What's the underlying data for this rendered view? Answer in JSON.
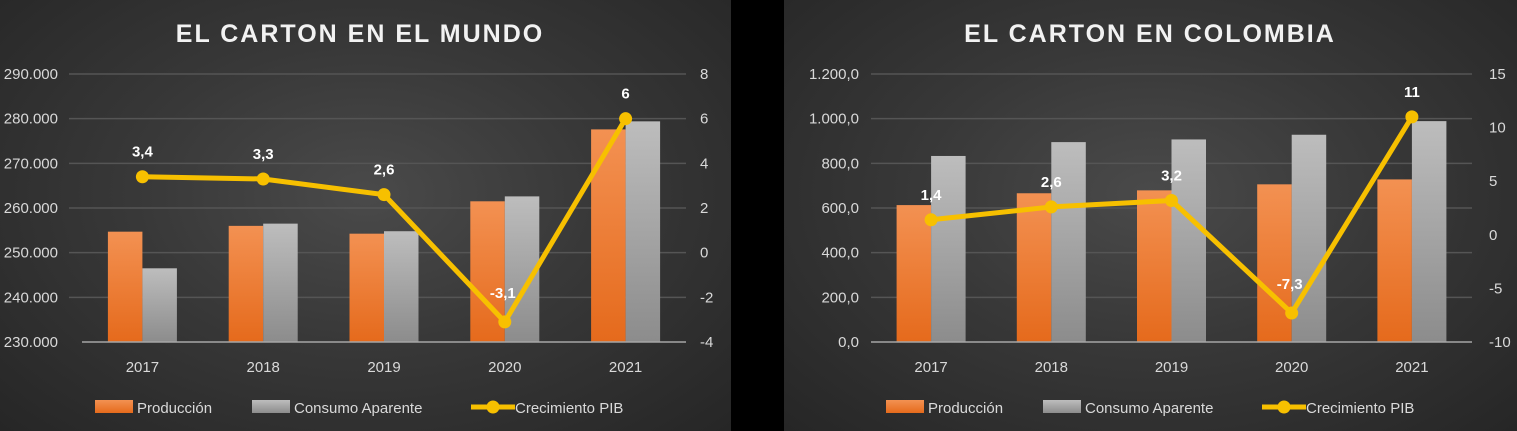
{
  "colors": {
    "produccion_top": "#f39152",
    "produccion_bottom": "#e56a1c",
    "consumo_top": "#bdbdbd",
    "consumo_bottom": "#8c8c8c",
    "pib": "#f7c000",
    "grid": "#555555",
    "axis": "#a6a6a6"
  },
  "chart_data": [
    {
      "type": "bar",
      "title": "EL CARTON EN EL MUNDO",
      "categories": [
        "2017",
        "2018",
        "2019",
        "2020",
        "2021"
      ],
      "series": [
        {
          "name": "Producción",
          "type": "bar",
          "axis": "left",
          "values": [
            254700,
            256000,
            254250,
            261500,
            277600
          ]
        },
        {
          "name": "Consumo Aparente",
          "type": "bar",
          "axis": "left",
          "values": [
            246500,
            256500,
            254800,
            262600,
            279400
          ]
        },
        {
          "name": "Crecimiento PIB",
          "type": "line",
          "axis": "right",
          "values": [
            3.4,
            3.3,
            2.6,
            -3.1,
            6
          ],
          "labels": [
            "3,4",
            "3,3",
            "2,6",
            "-3,1",
            "6"
          ]
        }
      ],
      "ylim": [
        230000,
        290000
      ],
      "yticks": [
        "230.000",
        "240.000",
        "250.000",
        "260.000",
        "270.000",
        "280.000",
        "290.000"
      ],
      "y2lim": [
        -4,
        8
      ],
      "y2ticks": [
        "-4",
        "-2",
        "0",
        "2",
        "4",
        "6",
        "8"
      ],
      "grid": true,
      "legend": "bottom"
    },
    {
      "type": "bar",
      "title": "EL CARTON EN COLOMBIA",
      "categories": [
        "2017",
        "2018",
        "2019",
        "2020",
        "2021"
      ],
      "series": [
        {
          "name": "Producción",
          "type": "bar",
          "axis": "left",
          "values": [
            613,
            666,
            679,
            706,
            728
          ]
        },
        {
          "name": "Consumo Aparente",
          "type": "bar",
          "axis": "left",
          "values": [
            833,
            895,
            907,
            928,
            989
          ]
        },
        {
          "name": "Crecimiento PIB",
          "type": "line",
          "axis": "right",
          "values": [
            1.4,
            2.6,
            3.2,
            -7.3,
            11
          ],
          "labels": [
            "1,4",
            "2,6",
            "3,2",
            "-7,3",
            "11"
          ]
        }
      ],
      "ylim": [
        0,
        1200
      ],
      "yticks": [
        "0,0",
        "200,0",
        "400,0",
        "600,0",
        "800,0",
        "1.000,0",
        "1.200,0"
      ],
      "y2lim": [
        -10,
        15
      ],
      "y2ticks": [
        "-10",
        "-5",
        "0",
        "5",
        "10",
        "15"
      ],
      "grid": true,
      "legend": "bottom"
    }
  ]
}
